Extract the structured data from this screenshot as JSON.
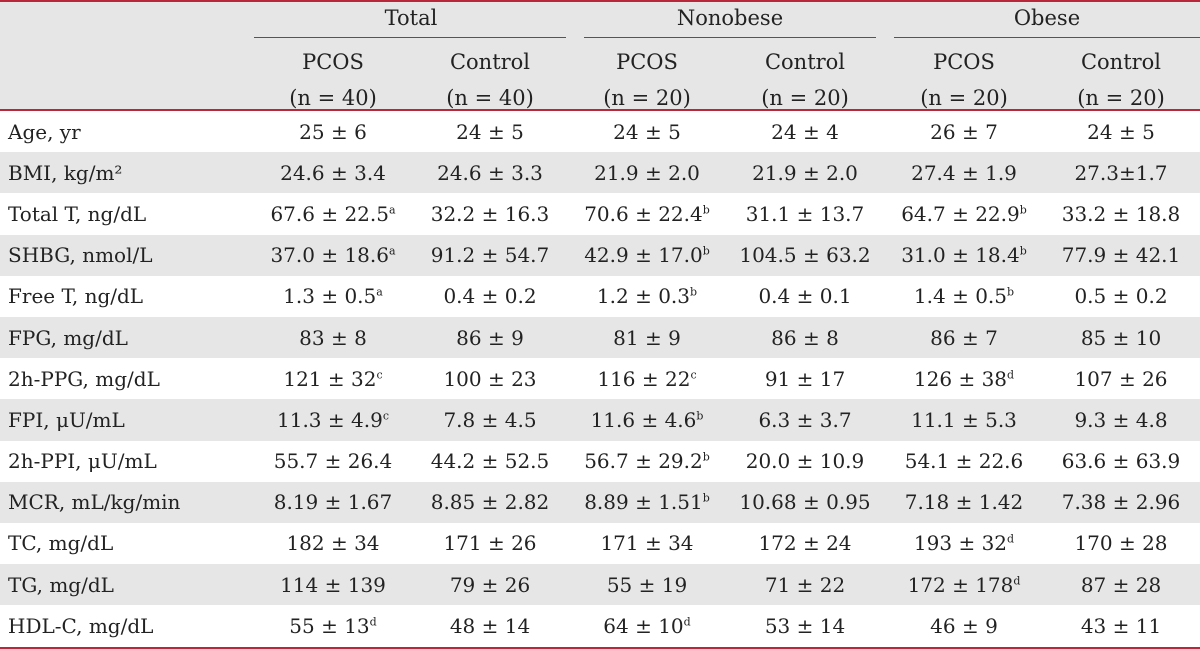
{
  "header": {
    "groups": [
      "Total",
      "Nonobese",
      "Obese"
    ],
    "subcols": [
      {
        "name": "PCOS",
        "n": "(n = 40)"
      },
      {
        "name": "Control",
        "n": "(n = 40)"
      },
      {
        "name": "PCOS",
        "n": "(n = 20)"
      },
      {
        "name": "Control",
        "n": "(n = 20)"
      },
      {
        "name": "PCOS",
        "n": "(n = 20)"
      },
      {
        "name": "Control",
        "n": "(n = 20)"
      }
    ]
  },
  "rows": [
    {
      "label": "Age, yr",
      "cells": [
        {
          "v": "25 ± 6",
          "s": ""
        },
        {
          "v": "24 ± 5",
          "s": ""
        },
        {
          "v": "24 ± 5",
          "s": ""
        },
        {
          "v": "24 ± 4",
          "s": ""
        },
        {
          "v": "26 ± 7",
          "s": ""
        },
        {
          "v": "24 ± 5",
          "s": ""
        }
      ]
    },
    {
      "label": "BMI, kg/m²",
      "cells": [
        {
          "v": "24.6 ± 3.4",
          "s": ""
        },
        {
          "v": "24.6 ± 3.3",
          "s": ""
        },
        {
          "v": "21.9 ± 2.0",
          "s": ""
        },
        {
          "v": "21.9 ± 2.0",
          "s": ""
        },
        {
          "v": "27.4 ± 1.9",
          "s": ""
        },
        {
          "v": "27.3±1.7",
          "s": ""
        }
      ]
    },
    {
      "label": "Total T, ng/dL",
      "cells": [
        {
          "v": "67.6 ± 22.5",
          "s": "a"
        },
        {
          "v": "32.2 ± 16.3",
          "s": ""
        },
        {
          "v": "70.6 ± 22.4",
          "s": "b"
        },
        {
          "v": "31.1 ± 13.7",
          "s": ""
        },
        {
          "v": "64.7 ± 22.9",
          "s": "b"
        },
        {
          "v": "33.2 ± 18.8",
          "s": ""
        }
      ]
    },
    {
      "label": "SHBG, nmol/L",
      "cells": [
        {
          "v": "37.0 ± 18.6",
          "s": "a"
        },
        {
          "v": "91.2 ± 54.7",
          "s": ""
        },
        {
          "v": "42.9 ± 17.0",
          "s": "b"
        },
        {
          "v": "104.5 ± 63.2",
          "s": ""
        },
        {
          "v": "31.0 ± 18.4",
          "s": "b"
        },
        {
          "v": "77.9 ± 42.1",
          "s": ""
        }
      ]
    },
    {
      "label": "Free T, ng/dL",
      "cells": [
        {
          "v": "1.3 ± 0.5",
          "s": "a"
        },
        {
          "v": "0.4 ± 0.2",
          "s": ""
        },
        {
          "v": "1.2 ± 0.3",
          "s": "b"
        },
        {
          "v": "0.4 ± 0.1",
          "s": ""
        },
        {
          "v": "1.4 ± 0.5",
          "s": "b"
        },
        {
          "v": "0.5 ± 0.2",
          "s": ""
        }
      ]
    },
    {
      "label": "FPG, mg/dL",
      "cells": [
        {
          "v": "83 ± 8",
          "s": ""
        },
        {
          "v": "86 ± 9",
          "s": ""
        },
        {
          "v": "81 ± 9",
          "s": ""
        },
        {
          "v": "86 ± 8",
          "s": ""
        },
        {
          "v": "86 ± 7",
          "s": ""
        },
        {
          "v": "85 ± 10",
          "s": ""
        }
      ]
    },
    {
      "label": "2h-PPG, mg/dL",
      "cells": [
        {
          "v": "121 ± 32",
          "s": "c"
        },
        {
          "v": "100 ± 23",
          "s": ""
        },
        {
          "v": "116 ± 22",
          "s": "c"
        },
        {
          "v": "91 ± 17",
          "s": ""
        },
        {
          "v": "126 ± 38",
          "s": "d"
        },
        {
          "v": "107 ± 26",
          "s": ""
        }
      ]
    },
    {
      "label": "FPI, μU/mL",
      "cells": [
        {
          "v": "11.3 ± 4.9",
          "s": "c"
        },
        {
          "v": "7.8 ± 4.5",
          "s": ""
        },
        {
          "v": "11.6 ± 4.6",
          "s": "b"
        },
        {
          "v": "6.3 ± 3.7",
          "s": ""
        },
        {
          "v": "11.1 ± 5.3",
          "s": ""
        },
        {
          "v": "9.3 ± 4.8",
          "s": ""
        }
      ]
    },
    {
      "label": "2h-PPI, μU/mL",
      "cells": [
        {
          "v": "55.7 ± 26.4",
          "s": ""
        },
        {
          "v": "44.2 ± 52.5",
          "s": ""
        },
        {
          "v": "56.7 ± 29.2",
          "s": "b"
        },
        {
          "v": "20.0 ± 10.9",
          "s": ""
        },
        {
          "v": "54.1 ± 22.6",
          "s": ""
        },
        {
          "v": "63.6 ± 63.9",
          "s": ""
        }
      ]
    },
    {
      "label": "MCR, mL/kg/min",
      "cells": [
        {
          "v": "8.19 ± 1.67",
          "s": ""
        },
        {
          "v": "8.85 ± 2.82",
          "s": ""
        },
        {
          "v": "8.89 ± 1.51",
          "s": "b"
        },
        {
          "v": "10.68 ± 0.95",
          "s": ""
        },
        {
          "v": "7.18 ± 1.42",
          "s": ""
        },
        {
          "v": "7.38 ± 2.96",
          "s": ""
        }
      ]
    },
    {
      "label": "TC, mg/dL",
      "cells": [
        {
          "v": "182 ± 34",
          "s": ""
        },
        {
          "v": "171 ± 26",
          "s": ""
        },
        {
          "v": "171 ± 34",
          "s": ""
        },
        {
          "v": "172 ± 24",
          "s": ""
        },
        {
          "v": "193 ± 32",
          "s": "d"
        },
        {
          "v": "170 ± 28",
          "s": ""
        }
      ]
    },
    {
      "label": "TG, mg/dL",
      "cells": [
        {
          "v": "114 ± 139",
          "s": ""
        },
        {
          "v": "79 ± 26",
          "s": ""
        },
        {
          "v": "55 ± 19",
          "s": ""
        },
        {
          "v": "71 ± 22",
          "s": ""
        },
        {
          "v": "172 ± 178",
          "s": "d"
        },
        {
          "v": "87 ± 28",
          "s": ""
        }
      ]
    },
    {
      "label": "HDL-C, mg/dL",
      "cells": [
        {
          "v": "55 ± 13",
          "s": "d"
        },
        {
          "v": "48 ± 14",
          "s": ""
        },
        {
          "v": "64 ± 10",
          "s": "d"
        },
        {
          "v": "53 ± 14",
          "s": ""
        },
        {
          "v": "46 ± 9",
          "s": ""
        },
        {
          "v": "43 ± 11",
          "s": ""
        }
      ]
    }
  ]
}
